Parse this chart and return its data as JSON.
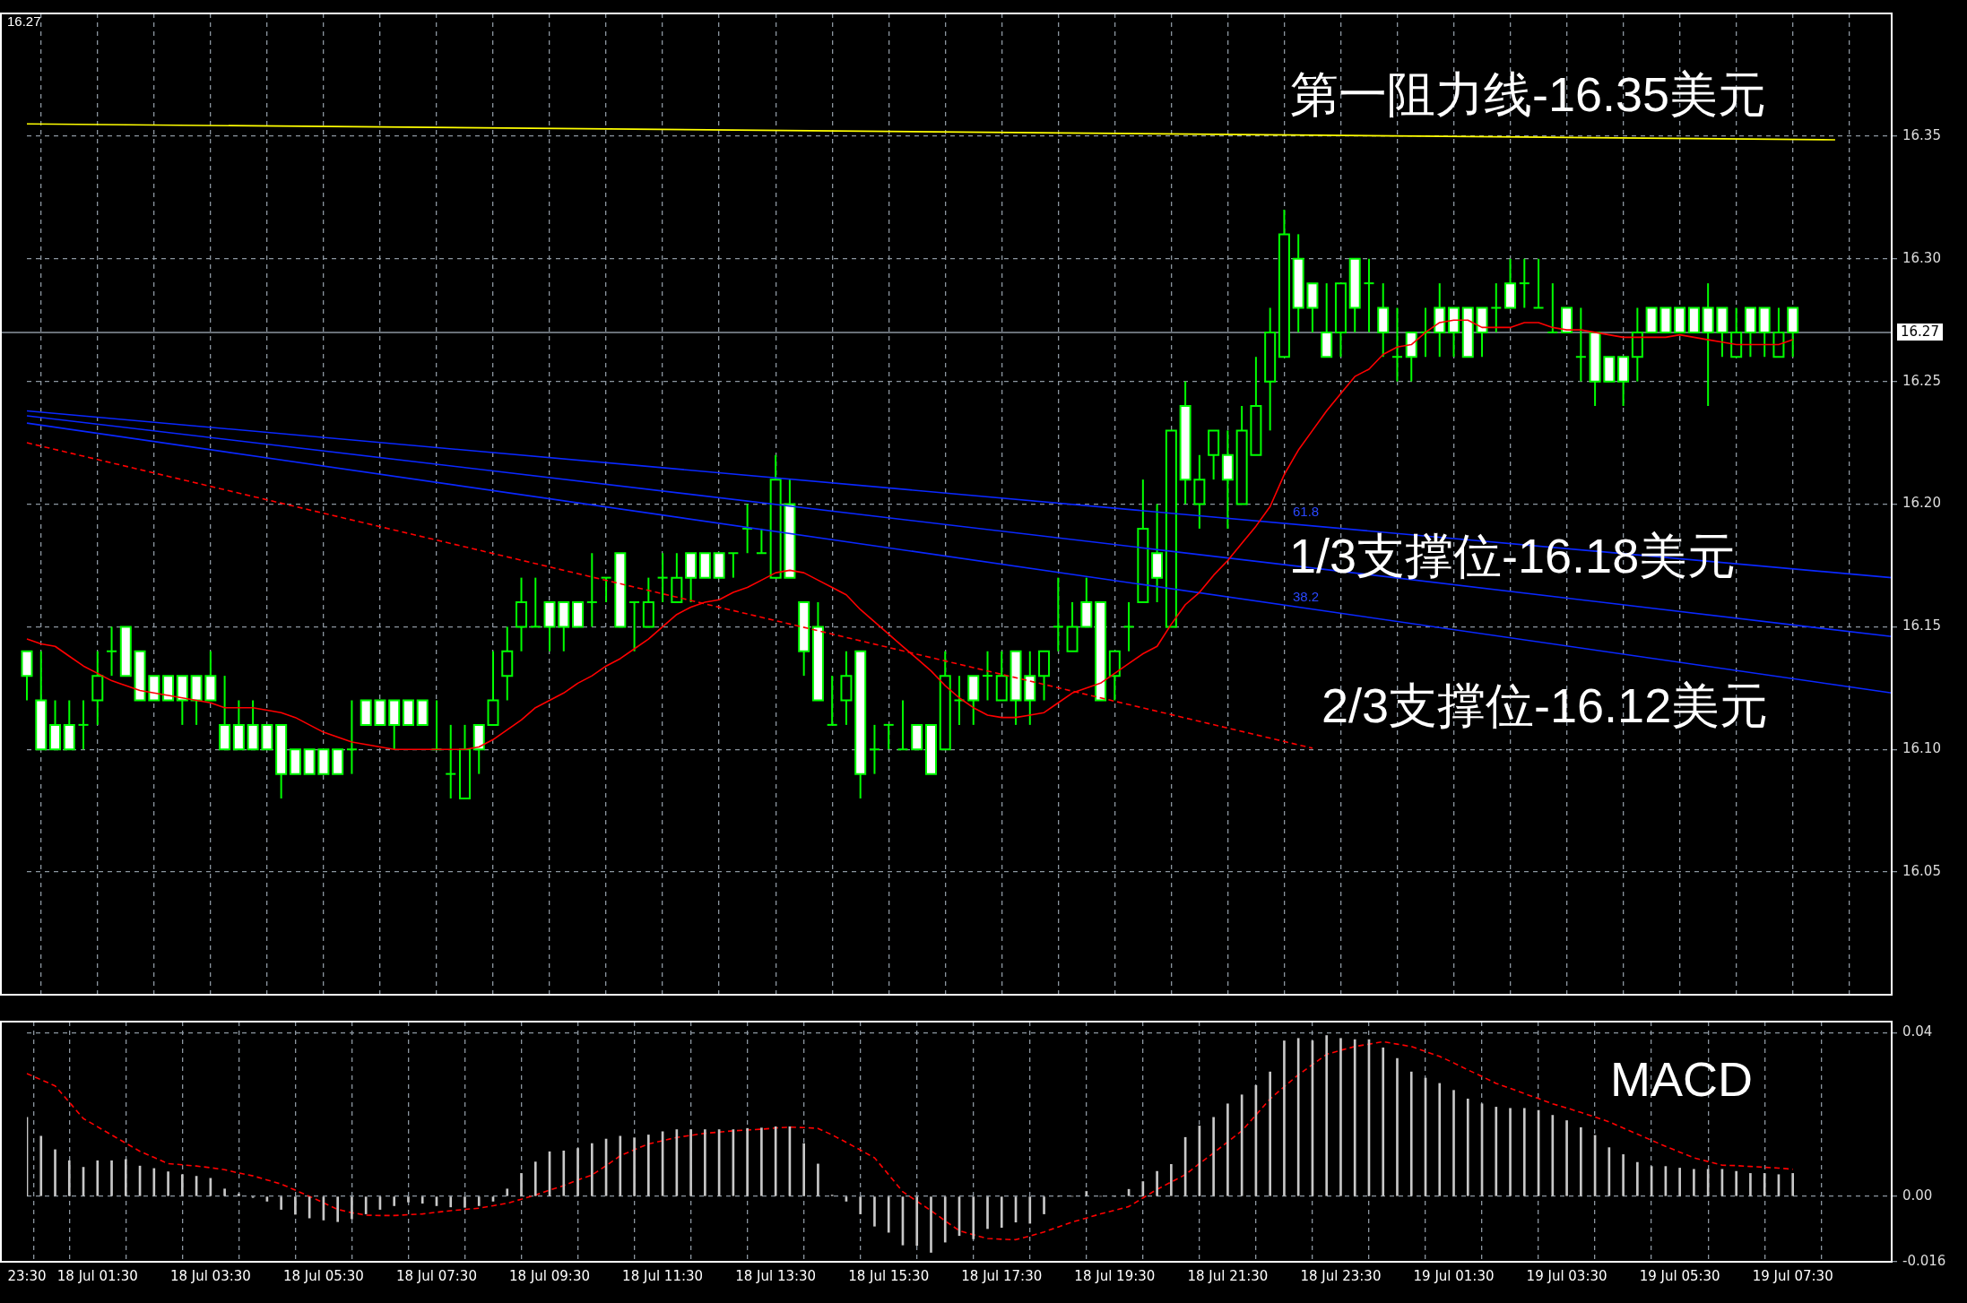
{
  "chart_data": [
    {
      "type": "candlestick",
      "categories": [
        null,
        null,
        null,
        null,
        null,
        null,
        null,
        null,
        null,
        null,
        null,
        null,
        null,
        null,
        null,
        null,
        null,
        null,
        null,
        null,
        null,
        null,
        null,
        null,
        null,
        null,
        null,
        null,
        null,
        null,
        null,
        null,
        null,
        null,
        null,
        null,
        null,
        null,
        null,
        null,
        null,
        null,
        null,
        null,
        null,
        null,
        null,
        null,
        null,
        null,
        null,
        null,
        null,
        null,
        null,
        null,
        null,
        null,
        null,
        null,
        null,
        null,
        null,
        null,
        null,
        null,
        null,
        null,
        null,
        null,
        null,
        null,
        null,
        null,
        null,
        null,
        null,
        null,
        null,
        null,
        null,
        null,
        null,
        null,
        null,
        null,
        null,
        null,
        null,
        null,
        null,
        null,
        null,
        null,
        null,
        null,
        null,
        null,
        null,
        null,
        null,
        null,
        null,
        null,
        null,
        null,
        null,
        null,
        null,
        null,
        null,
        null,
        null,
        null,
        null,
        null,
        null,
        null,
        null,
        null,
        null,
        null,
        null,
        null,
        null,
        null,
        null,
        null,
        null,
        null,
        null,
        null,
        null
      ],
      "color": "#00ff00",
      "ohlc": [
        [
          16.14,
          16.14,
          16.12,
          16.13
        ],
        [
          16.12,
          16.14,
          16.1,
          16.1
        ],
        [
          16.11,
          16.12,
          16.1,
          16.1
        ],
        [
          16.11,
          16.12,
          16.1,
          16.1
        ],
        [
          16.11,
          16.12,
          16.1,
          16.11
        ],
        [
          16.12,
          16.14,
          16.11,
          16.13
        ],
        [
          16.14,
          16.15,
          16.13,
          16.14
        ],
        [
          16.15,
          16.15,
          16.13,
          16.13
        ],
        [
          16.14,
          16.14,
          16.12,
          16.12
        ],
        [
          16.13,
          16.13,
          16.12,
          16.12
        ],
        [
          16.13,
          16.13,
          16.12,
          16.12
        ],
        [
          16.13,
          16.13,
          16.11,
          16.12
        ],
        [
          16.13,
          16.13,
          16.11,
          16.12
        ],
        [
          16.13,
          16.14,
          16.12,
          16.12
        ],
        [
          16.11,
          16.13,
          16.1,
          16.1
        ],
        [
          16.11,
          16.12,
          16.1,
          16.1
        ],
        [
          16.11,
          16.12,
          16.1,
          16.1
        ],
        [
          16.11,
          16.11,
          16.1,
          16.1
        ],
        [
          16.11,
          16.11,
          16.08,
          16.09
        ],
        [
          16.1,
          16.1,
          16.09,
          16.09
        ],
        [
          16.1,
          16.1,
          16.09,
          16.09
        ],
        [
          16.1,
          16.1,
          16.09,
          16.09
        ],
        [
          16.1,
          16.1,
          16.09,
          16.09
        ],
        [
          16.1,
          16.12,
          16.09,
          16.1
        ],
        [
          16.12,
          16.12,
          16.11,
          16.11
        ],
        [
          16.12,
          16.12,
          16.11,
          16.11
        ],
        [
          16.12,
          16.12,
          16.1,
          16.11
        ],
        [
          16.12,
          16.12,
          16.11,
          16.11
        ],
        [
          16.12,
          16.12,
          16.11,
          16.11
        ],
        [
          16.1,
          16.12,
          16.1,
          16.1
        ],
        [
          16.09,
          16.11,
          16.08,
          16.09
        ],
        [
          16.08,
          16.11,
          16.08,
          16.1
        ],
        [
          16.11,
          16.11,
          16.09,
          16.1
        ],
        [
          16.11,
          16.14,
          16.11,
          16.12
        ],
        [
          16.13,
          16.15,
          16.12,
          16.14
        ],
        [
          16.15,
          16.17,
          16.14,
          16.16
        ],
        [
          16.15,
          16.17,
          16.15,
          16.15
        ],
        [
          16.16,
          16.16,
          16.14,
          16.15
        ],
        [
          16.16,
          16.16,
          16.14,
          16.15
        ],
        [
          16.16,
          16.16,
          16.15,
          16.15
        ],
        [
          16.16,
          16.18,
          16.15,
          16.16
        ],
        [
          16.17,
          16.17,
          16.16,
          16.17
        ],
        [
          16.18,
          16.18,
          16.15,
          16.15
        ],
        [
          16.16,
          16.16,
          16.14,
          16.16
        ],
        [
          16.15,
          16.17,
          16.15,
          16.16
        ],
        [
          16.17,
          16.18,
          16.16,
          16.17
        ],
        [
          16.16,
          16.18,
          16.16,
          16.17
        ],
        [
          16.18,
          16.18,
          16.16,
          16.17
        ],
        [
          16.18,
          16.18,
          16.17,
          16.17
        ],
        [
          16.18,
          16.18,
          16.17,
          16.17
        ],
        [
          16.18,
          16.18,
          16.17,
          16.18
        ],
        [
          16.19,
          16.2,
          16.18,
          16.19
        ],
        [
          16.18,
          16.19,
          16.18,
          16.18
        ],
        [
          16.17,
          16.22,
          16.17,
          16.21
        ],
        [
          16.2,
          16.21,
          16.17,
          16.17
        ],
        [
          16.16,
          16.16,
          16.13,
          16.14
        ],
        [
          16.15,
          16.16,
          16.12,
          16.12
        ],
        [
          16.11,
          16.13,
          16.11,
          16.11
        ],
        [
          16.12,
          16.14,
          16.11,
          16.13
        ],
        [
          16.14,
          16.14,
          16.08,
          16.09
        ],
        [
          16.1,
          16.11,
          16.09,
          16.1
        ],
        [
          16.11,
          16.11,
          16.1,
          16.11
        ],
        [
          16.1,
          16.12,
          16.1,
          16.1
        ],
        [
          16.11,
          16.11,
          16.1,
          16.1
        ],
        [
          16.11,
          16.11,
          16.09,
          16.09
        ],
        [
          16.1,
          16.14,
          16.1,
          16.13
        ],
        [
          16.12,
          16.13,
          16.11,
          16.12
        ],
        [
          16.13,
          16.13,
          16.11,
          16.12
        ],
        [
          16.13,
          16.14,
          16.12,
          16.13
        ],
        [
          16.12,
          16.14,
          16.12,
          16.13
        ],
        [
          16.14,
          16.14,
          16.11,
          16.12
        ],
        [
          16.13,
          16.14,
          16.11,
          16.12
        ],
        [
          16.13,
          16.14,
          16.12,
          16.14
        ],
        [
          16.15,
          16.17,
          16.14,
          16.15
        ],
        [
          16.14,
          16.16,
          16.14,
          16.15
        ],
        [
          16.16,
          16.17,
          16.15,
          16.15
        ],
        [
          16.16,
          16.16,
          16.12,
          16.12
        ],
        [
          16.13,
          16.14,
          16.12,
          16.14
        ],
        [
          16.15,
          16.16,
          16.14,
          16.15
        ],
        [
          16.16,
          16.21,
          16.16,
          16.19
        ],
        [
          16.18,
          16.2,
          16.16,
          16.17
        ],
        [
          16.15,
          16.23,
          16.15,
          16.23
        ],
        [
          16.24,
          16.25,
          16.2,
          16.21
        ],
        [
          16.2,
          16.22,
          16.19,
          16.21
        ],
        [
          16.22,
          16.23,
          16.21,
          16.23
        ],
        [
          16.22,
          16.23,
          16.19,
          16.21
        ],
        [
          16.2,
          16.24,
          16.2,
          16.23
        ],
        [
          16.22,
          16.26,
          16.22,
          16.24
        ],
        [
          16.25,
          16.28,
          16.23,
          16.27
        ],
        [
          16.26,
          16.32,
          16.26,
          16.31
        ],
        [
          16.3,
          16.31,
          16.27,
          16.28
        ],
        [
          16.29,
          16.29,
          16.27,
          16.28
        ],
        [
          16.27,
          16.29,
          16.26,
          16.26
        ],
        [
          16.27,
          16.29,
          16.26,
          16.29
        ],
        [
          16.3,
          16.3,
          16.27,
          16.28
        ],
        [
          16.29,
          16.3,
          16.27,
          16.29
        ],
        [
          16.28,
          16.29,
          16.26,
          16.27
        ],
        [
          16.26,
          16.28,
          16.25,
          16.26
        ],
        [
          16.27,
          16.27,
          16.25,
          16.26
        ],
        [
          16.27,
          16.28,
          16.26,
          16.27
        ],
        [
          16.28,
          16.29,
          16.26,
          16.27
        ],
        [
          16.28,
          16.28,
          16.26,
          16.27
        ],
        [
          16.28,
          16.28,
          16.26,
          16.26
        ],
        [
          16.28,
          16.28,
          16.26,
          16.27
        ],
        [
          16.28,
          16.29,
          16.27,
          16.28
        ],
        [
          16.29,
          16.3,
          16.28,
          16.28
        ],
        [
          16.29,
          16.3,
          16.28,
          16.29
        ],
        [
          16.28,
          16.3,
          16.28,
          16.28
        ],
        [
          16.27,
          16.29,
          16.27,
          16.27
        ],
        [
          16.28,
          16.28,
          16.27,
          16.27
        ],
        [
          16.26,
          16.28,
          16.25,
          16.26
        ],
        [
          16.27,
          16.27,
          16.24,
          16.25
        ],
        [
          16.26,
          16.26,
          16.25,
          16.25
        ],
        [
          16.26,
          16.26,
          16.24,
          16.25
        ],
        [
          16.26,
          16.28,
          16.25,
          16.27
        ],
        [
          16.28,
          16.28,
          16.27,
          16.27
        ],
        [
          16.28,
          16.28,
          16.27,
          16.27
        ],
        [
          16.28,
          16.28,
          16.27,
          16.27
        ],
        [
          16.28,
          16.28,
          16.27,
          16.27
        ],
        [
          16.28,
          16.29,
          16.24,
          16.27
        ],
        [
          16.28,
          16.28,
          16.26,
          16.27
        ],
        [
          16.26,
          16.28,
          16.26,
          16.27
        ],
        [
          16.28,
          16.28,
          16.26,
          16.27
        ],
        [
          16.28,
          16.28,
          16.26,
          16.27
        ],
        [
          16.26,
          16.28,
          16.26,
          16.27
        ],
        [
          16.28,
          16.28,
          16.26,
          16.27
        ],
        null,
        null,
        null,
        null,
        null,
        null,
        null
      ],
      "series": [
        {
          "type": "line",
          "color": "#ff0000",
          "values": [
            16.145,
            16.143,
            16.142,
            16.138,
            16.134,
            16.131,
            16.128,
            16.126,
            16.124,
            16.123,
            16.122,
            16.121,
            16.12,
            16.119,
            16.117,
            16.117,
            16.117,
            16.116,
            16.115,
            16.113,
            16.11,
            16.107,
            16.105,
            16.103,
            16.102,
            16.101,
            16.1,
            16.1,
            16.1,
            16.1,
            16.1,
            16.1,
            16.101,
            16.104,
            16.108,
            16.112,
            16.117,
            16.12,
            16.123,
            16.127,
            16.13,
            16.134,
            16.137,
            16.141,
            16.145,
            16.15,
            16.155,
            16.158,
            16.16,
            16.161,
            16.164,
            16.166,
            16.169,
            16.172,
            16.173,
            16.172,
            16.169,
            16.166,
            16.163,
            16.157,
            16.152,
            16.147,
            16.142,
            16.137,
            16.132,
            16.126,
            16.121,
            16.117,
            16.114,
            16.113,
            16.113,
            16.114,
            16.115,
            16.119,
            16.123,
            16.125,
            16.127,
            16.131,
            16.135,
            16.139,
            16.142,
            16.151,
            16.159,
            16.164,
            16.171,
            16.177,
            16.184,
            16.191,
            16.199,
            16.212,
            16.222,
            16.23,
            16.238,
            16.245,
            16.252,
            16.255,
            16.261,
            16.264,
            16.265,
            16.27,
            16.274,
            16.275,
            16.275,
            16.272,
            16.272,
            16.272,
            16.274,
            16.274,
            16.272,
            16.271,
            16.271,
            16.27,
            16.269,
            16.268,
            16.268,
            16.268,
            16.268,
            16.269,
            16.268,
            16.267,
            16.266,
            16.265,
            16.265,
            16.265,
            16.265,
            16.267,
            null,
            null,
            null,
            null,
            null,
            null,
            null
          ]
        },
        {
          "type": "line",
          "color": "#ffff00",
          "values": [
            16.355,
            null,
            null,
            null,
            null,
            null,
            null,
            null,
            null,
            null,
            null,
            null,
            null,
            null,
            null,
            null,
            null,
            null,
            null,
            null,
            null,
            null,
            null,
            null,
            null,
            null,
            null,
            null,
            null,
            null,
            null,
            null,
            null,
            null,
            null,
            null,
            null,
            null,
            null,
            null,
            null,
            null,
            null,
            null,
            null,
            null,
            null,
            null,
            null,
            null,
            null,
            null,
            null,
            null,
            null,
            null,
            null,
            null,
            null,
            null,
            null,
            null,
            null,
            null,
            null,
            null,
            null,
            null,
            null,
            null,
            null,
            null,
            null,
            null,
            null,
            null,
            null,
            null,
            null,
            null,
            null,
            null,
            null,
            null,
            null,
            null,
            null,
            null,
            null,
            null,
            null,
            null,
            null,
            null,
            null,
            null,
            null,
            null,
            null,
            null,
            null,
            null,
            null,
            null,
            null,
            null,
            null,
            null,
            null,
            null,
            null,
            null,
            null,
            null,
            null,
            null,
            null,
            null,
            null,
            null,
            null,
            null,
            null,
            null,
            null,
            null,
            null,
            null,
            16.3485,
            null,
            null,
            null,
            null
          ]
        },
        {
          "type": "line",
          "color": "#0a28ff",
          "values": [
            16.238,
            null,
            null,
            null,
            null,
            null,
            null,
            null,
            null,
            null,
            null,
            null,
            null,
            null,
            null,
            null,
            null,
            null,
            null,
            null,
            null,
            null,
            null,
            null,
            null,
            null,
            null,
            null,
            null,
            null,
            null,
            null,
            null,
            null,
            null,
            null,
            null,
            null,
            null,
            null,
            null,
            null,
            null,
            null,
            null,
            null,
            null,
            null,
            null,
            null,
            null,
            null,
            null,
            null,
            null,
            null,
            null,
            null,
            null,
            null,
            null,
            null,
            null,
            null,
            null,
            null,
            null,
            null,
            null,
            null,
            null,
            null,
            null,
            null,
            null,
            null,
            null,
            null,
            null,
            null,
            null,
            null,
            null,
            null,
            null,
            null,
            null,
            null,
            null,
            null,
            null,
            null,
            null,
            null,
            null,
            null,
            null,
            null,
            null,
            null,
            null,
            null,
            null,
            null,
            null,
            null,
            null,
            null,
            null,
            null,
            null,
            null,
            null,
            null,
            null,
            null,
            null,
            null,
            null,
            null,
            null,
            null,
            null,
            null,
            null,
            null,
            null,
            null,
            null,
            null,
            null,
            null,
            16.17
          ]
        },
        {
          "type": "line",
          "color": "#0a28ff",
          "values": [
            16.236,
            null,
            null,
            null,
            null,
            null,
            null,
            null,
            null,
            null,
            null,
            null,
            null,
            null,
            null,
            null,
            null,
            null,
            null,
            null,
            null,
            null,
            null,
            null,
            null,
            null,
            null,
            null,
            null,
            null,
            null,
            null,
            null,
            null,
            null,
            null,
            null,
            null,
            null,
            null,
            null,
            null,
            null,
            null,
            null,
            null,
            null,
            null,
            null,
            null,
            null,
            null,
            null,
            null,
            null,
            null,
            null,
            null,
            null,
            null,
            null,
            null,
            null,
            null,
            null,
            null,
            null,
            null,
            null,
            null,
            null,
            null,
            null,
            null,
            null,
            null,
            null,
            null,
            null,
            null,
            null,
            null,
            null,
            null,
            null,
            null,
            null,
            null,
            null,
            null,
            null,
            null,
            null,
            null,
            null,
            null,
            null,
            null,
            null,
            null,
            null,
            null,
            null,
            null,
            null,
            null,
            null,
            null,
            null,
            null,
            null,
            null,
            null,
            null,
            null,
            null,
            null,
            null,
            null,
            null,
            null,
            null,
            null,
            null,
            null,
            null,
            null,
            null,
            null,
            null,
            null,
            null,
            16.146
          ]
        },
        {
          "type": "line",
          "color": "#0a28ff",
          "values": [
            16.233,
            null,
            null,
            null,
            null,
            null,
            null,
            null,
            null,
            null,
            null,
            null,
            null,
            null,
            null,
            null,
            null,
            null,
            null,
            null,
            null,
            null,
            null,
            null,
            null,
            null,
            null,
            null,
            null,
            null,
            null,
            null,
            null,
            null,
            null,
            null,
            null,
            null,
            null,
            null,
            null,
            null,
            null,
            null,
            null,
            null,
            null,
            null,
            null,
            null,
            null,
            null,
            null,
            null,
            null,
            null,
            null,
            null,
            null,
            null,
            null,
            null,
            null,
            null,
            null,
            null,
            null,
            null,
            null,
            null,
            null,
            null,
            null,
            null,
            null,
            null,
            null,
            null,
            null,
            null,
            null,
            null,
            null,
            null,
            null,
            null,
            null,
            null,
            null,
            null,
            null,
            null,
            null,
            null,
            null,
            null,
            null,
            null,
            null,
            null,
            null,
            null,
            null,
            null,
            null,
            null,
            null,
            null,
            null,
            null,
            null,
            null,
            null,
            null,
            null,
            null,
            null,
            null,
            null,
            null,
            null,
            null,
            null,
            null,
            null,
            null,
            null,
            null,
            null,
            null,
            null,
            null,
            16.123
          ]
        },
        {
          "type": "line",
          "color": "#ff0000",
          "line_style": "dashed",
          "values": [
            16.225,
            null,
            null,
            null,
            null,
            null,
            null,
            null,
            null,
            null,
            null,
            null,
            null,
            null,
            null,
            null,
            null,
            null,
            null,
            null,
            null,
            null,
            null,
            null,
            null,
            null,
            null,
            null,
            null,
            null,
            null,
            null,
            null,
            null,
            null,
            null,
            null,
            null,
            null,
            null,
            null,
            null,
            null,
            null,
            null,
            null,
            null,
            null,
            null,
            null,
            null,
            null,
            null,
            null,
            null,
            null,
            null,
            null,
            null,
            null,
            null,
            null,
            null,
            null,
            null,
            null,
            null,
            null,
            null,
            null,
            null,
            null,
            null,
            null,
            null,
            null,
            null,
            null,
            null,
            null,
            null,
            null,
            null,
            null,
            null,
            null,
            null,
            null,
            null,
            null,
            null,
            16.1005,
            null,
            null,
            null,
            null,
            null,
            null,
            null,
            null,
            null,
            null,
            null,
            null,
            null,
            null,
            null,
            null,
            null,
            null,
            null,
            null,
            null,
            null,
            null,
            null,
            null,
            null,
            null,
            null,
            null,
            null,
            null,
            null,
            null,
            null,
            null,
            null,
            null,
            null,
            null,
            null,
            null
          ]
        }
      ],
      "ylim": [
        16.0,
        16.4
      ],
      "yticks": [
        16.05,
        {
          "value": 16.1,
          "label": "16.10"
        },
        16.15,
        {
          "value": 16.2,
          "label": "16.20"
        },
        16.25,
        {
          "value": 16.3,
          "label": "16.30"
        },
        16.35
      ],
      "ref_lines": [
        {
          "axis": "y",
          "value": 16.27,
          "label": "16.27",
          "color": "#8c96a0"
        }
      ],
      "annotations": [
        "16.27",
        "第一阻力线-16.35美元",
        "1/3支撑位-16.18美元",
        "2/3支撑位-16.12美元",
        "61.8",
        "38.2"
      ],
      "grid": true,
      "tick_labels": "y"
    },
    {
      "type": "bar",
      "categories": [
        "23:30",
        null,
        null,
        null,
        null,
        "18 Jul 01:30",
        null,
        null,
        null,
        null,
        null,
        null,
        null,
        "18 Jul 03:30",
        null,
        null,
        null,
        null,
        null,
        null,
        null,
        "18 Jul 05:30",
        null,
        null,
        null,
        null,
        null,
        null,
        null,
        "18 Jul 07:30",
        null,
        null,
        null,
        null,
        null,
        null,
        null,
        "18 Jul 09:30",
        null,
        null,
        null,
        null,
        null,
        null,
        null,
        "18 Jul 11:30",
        null,
        null,
        null,
        null,
        null,
        null,
        null,
        "18 Jul 13:30",
        null,
        null,
        null,
        null,
        null,
        null,
        null,
        "18 Jul 15:30",
        null,
        null,
        null,
        null,
        null,
        null,
        null,
        "18 Jul 17:30",
        null,
        null,
        null,
        null,
        null,
        null,
        null,
        "18 Jul 19:30",
        null,
        null,
        null,
        null,
        null,
        null,
        null,
        "18 Jul 21:30",
        null,
        null,
        null,
        null,
        null,
        null,
        null,
        "18 Jul 23:30",
        null,
        null,
        null,
        null,
        null,
        null,
        null,
        "19 Jul 01:30",
        null,
        null,
        null,
        null,
        null,
        null,
        null,
        "19 Jul 03:30",
        null,
        null,
        null,
        null,
        null,
        null,
        null,
        "19 Jul 05:30",
        null,
        null,
        null,
        null,
        null,
        null,
        null,
        "19 Jul 07:30",
        null,
        null,
        null,
        null,
        null,
        null,
        null
      ],
      "series": [
        {
          "color": "#c8c8c8",
          "values": [
            0.0193,
            0.0147,
            0.0114,
            0.0087,
            0.0071,
            0.0087,
            0.0087,
            0.009,
            0.0074,
            0.0068,
            0.006,
            0.0053,
            0.0049,
            0.0044,
            0.0018,
            0.0006,
            -0.0003,
            -0.0012,
            -0.0032,
            -0.0044,
            -0.0053,
            -0.0058,
            -0.0062,
            -0.0055,
            -0.0043,
            -0.0032,
            -0.0023,
            -0.0014,
            -0.0017,
            -0.0023,
            -0.0026,
            -0.0027,
            -0.0023,
            -0.0012,
            0.0018,
            0.0056,
            0.0084,
            0.0109,
            0.0111,
            0.0117,
            0.0129,
            0.014,
            0.0147,
            0.0143,
            0.015,
            0.0158,
            0.0163,
            0.0163,
            0.0163,
            0.0163,
            0.0163,
            0.0166,
            0.0167,
            0.017,
            0.017,
            0.0129,
            0.0079,
            0.0003,
            -0.0012,
            -0.0043,
            -0.0073,
            -0.0088,
            -0.0119,
            -0.012,
            -0.0137,
            -0.0112,
            -0.0096,
            -0.0104,
            -0.0079,
            -0.0076,
            -0.0063,
            -0.0066,
            -0.0043,
            0,
            0,
            0.0012,
            0,
            0,
            0.0017,
            0.0036,
            0.0061,
            0.0078,
            0.0144,
            0.0172,
            0.0193,
            0.0226,
            0.0248,
            0.0271,
            0.0304,
            0.038,
            0.0386,
            0.038,
            0.0393,
            0.0386,
            0.0383,
            0.0383,
            0.0363,
            0.0337,
            0.0304,
            0.0289,
            0.0276,
            0.0259,
            0.0238,
            0.0226,
            0.0218,
            0.0215,
            0.0215,
            0.021,
            0.0198,
            0.0185,
            0.0168,
            0.0149,
            0.0119,
            0.0102,
            0.0083,
            0.0073,
            0.0073,
            0.0069,
            0.0066,
            0.0066,
            0.0066,
            0.0061,
            0.0056,
            0.0056,
            0.0053,
            0.0056,
            null,
            null,
            null,
            null,
            null,
            null,
            null
          ]
        },
        {
          "type": "line",
          "color": "#ff0000",
          "line_style": "dashed",
          "values": [
            0.03,
            0.0285,
            0.027,
            0.023,
            0.019,
            0.017,
            0.015,
            0.013,
            0.011,
            0.0095,
            0.008,
            0.0077,
            0.0074,
            0.007,
            0.0065,
            0.0057,
            0.005,
            0.004,
            0.003,
            0.0015,
            0,
            -0.0016,
            -0.0032,
            -0.004,
            -0.0046,
            -0.0047,
            -0.0047,
            -0.0045,
            -0.0043,
            -0.0039,
            -0.0035,
            -0.0032,
            -0.0029,
            -0.0023,
            -0.0017,
            -0.0007,
            0.0003,
            0.0015,
            0.0026,
            0.004,
            0.0052,
            0.0075,
            0.0099,
            0.0114,
            0.0128,
            0.0136,
            0.0144,
            0.0149,
            0.0154,
            0.0157,
            0.016,
            0.0162,
            0.0164,
            0.0167,
            0.0169,
            0.0168,
            0.0166,
            0.015,
            0.0132,
            0.0113,
            0.0094,
            0.0053,
            0.0011,
            -0.0012,
            -0.0035,
            -0.006,
            -0.0084,
            -0.0094,
            -0.0103,
            -0.0105,
            -0.0106,
            -0.0097,
            -0.0087,
            -0.0075,
            -0.0063,
            -0.0053,
            -0.0043,
            -0.0034,
            -0.0025,
            -0.0004,
            0.0017,
            0.0035,
            0.0053,
            0.008,
            0.0106,
            0.0133,
            0.016,
            0.0199,
            0.0238,
            0.0268,
            0.0297,
            0.0322,
            0.0347,
            0.0357,
            0.0366,
            0.0372,
            0.0378,
            0.0372,
            0.0366,
            0.0354,
            0.0342,
            0.0326,
            0.0309,
            0.0293,
            0.0276,
            0.0264,
            0.0251,
            0.0239,
            0.0226,
            0.0216,
            0.0205,
            0.0194,
            0.0182,
            0.0167,
            0.0152,
            0.0137,
            0.0122,
            0.0108,
            0.0094,
            0.0085,
            0.0076,
            0.0075,
            0.0073,
            0.0071,
            0.0069,
            0.0066,
            null,
            null,
            null,
            null,
            null,
            null,
            null
          ]
        }
      ],
      "ylim": [
        -0.016,
        0.0427
      ],
      "yticks": [
        -0.016,
        {
          "value": 0,
          "label": "0.00"
        },
        0.04
      ],
      "annotations": [
        "MACD"
      ],
      "grid": true
    }
  ]
}
